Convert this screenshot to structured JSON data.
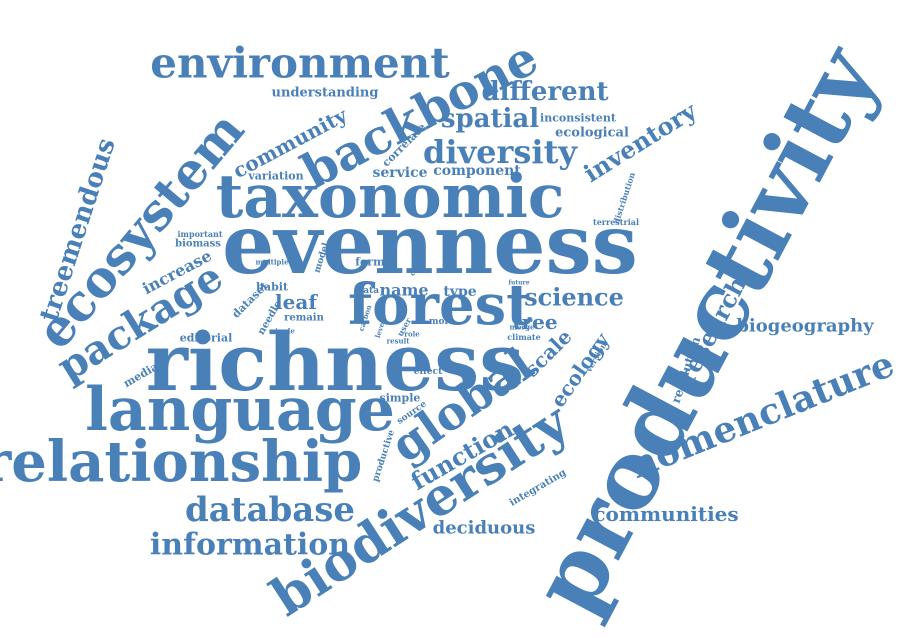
{
  "color": "#4a80b8",
  "words": [
    {
      "text": "productivity"
    },
    {
      "text": "evenness"
    },
    {
      "text": "richness"
    },
    {
      "text": "taxonomic"
    },
    {
      "text": "language"
    },
    {
      "text": "relationship"
    },
    {
      "text": "biodiversity"
    },
    {
      "text": "forest"
    },
    {
      "text": "global"
    },
    {
      "text": "ecosystem"
    },
    {
      "text": "backbone"
    },
    {
      "text": "environment"
    },
    {
      "text": "nomenclature"
    },
    {
      "text": "package"
    },
    {
      "text": "database"
    },
    {
      "text": "information"
    },
    {
      "text": "diversity"
    },
    {
      "text": "treemendous"
    },
    {
      "text": "science"
    },
    {
      "text": "function"
    },
    {
      "text": "different"
    },
    {
      "text": "spatial"
    },
    {
      "text": "research"
    },
    {
      "text": "inventory"
    },
    {
      "text": "community"
    },
    {
      "text": "communities"
    },
    {
      "text": "biogeography"
    },
    {
      "text": "deciduous"
    },
    {
      "text": "increase"
    },
    {
      "text": "scale"
    },
    {
      "text": "ecology"
    },
    {
      "text": "tree"
    },
    {
      "text": "leaf"
    },
    {
      "text": "name"
    },
    {
      "text": "type"
    },
    {
      "text": "service"
    },
    {
      "text": "component"
    },
    {
      "text": "understanding"
    },
    {
      "text": "ecological"
    },
    {
      "text": "inconsistent"
    },
    {
      "text": "variation"
    },
    {
      "text": "correlate"
    },
    {
      "text": "editorial"
    },
    {
      "text": "mediate"
    },
    {
      "text": "resolution"
    },
    {
      "text": "integrating"
    },
    {
      "text": "biomass"
    },
    {
      "text": "important"
    },
    {
      "text": "habit"
    },
    {
      "text": "dataset"
    },
    {
      "text": "needle"
    },
    {
      "text": "remain"
    },
    {
      "text": "single"
    },
    {
      "text": "multiple"
    },
    {
      "text": "model"
    },
    {
      "text": "form"
    },
    {
      "text": "data"
    },
    {
      "text": "carbon"
    },
    {
      "text": "level"
    },
    {
      "text": "user"
    },
    {
      "text": "role"
    },
    {
      "text": "result"
    },
    {
      "text": "more"
    },
    {
      "text": "change"
    },
    {
      "text": "future"
    },
    {
      "text": "merge"
    },
    {
      "text": "climate"
    },
    {
      "text": "version"
    },
    {
      "text": "distribution"
    },
    {
      "text": "terrestrial"
    },
    {
      "text": "effect"
    },
    {
      "text": "simple"
    },
    {
      "text": "source"
    },
    {
      "text": "productive"
    }
  ]
}
